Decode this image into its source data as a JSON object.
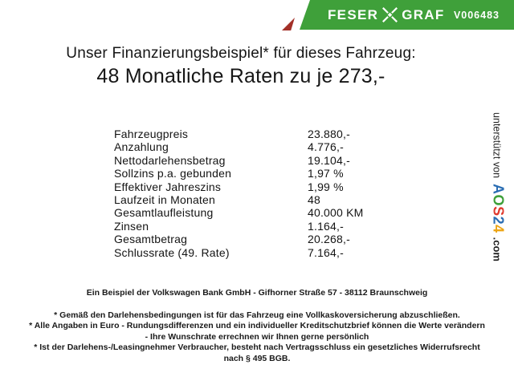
{
  "header": {
    "brand_left": "FESER",
    "brand_right": "GRAF",
    "vehicle_id": "V006483",
    "bar_color": "#3fa03a",
    "accent_color": "#a33028",
    "text_color": "#ffffff"
  },
  "title": {
    "line1": "Unser Finanzierungsbeispiel* für dieses Fahrzeug:",
    "line2": "48 Monatliche Raten zu je 273,-"
  },
  "finance_table": {
    "rows": [
      {
        "label": "Fahrzeugpreis",
        "value": "23.880,-"
      },
      {
        "label": "Anzahlung",
        "value": "4.776,-"
      },
      {
        "label": "Nettodarlehensbetrag",
        "value": "19.104,-"
      },
      {
        "label": "Sollzins p.a. gebunden",
        "value": "1,97 %"
      },
      {
        "label": "Effektiver Jahreszins",
        "value": "1,99 %"
      },
      {
        "label": "Laufzeit in Monaten",
        "value": "48"
      },
      {
        "label": "Gesamtlaufleistung",
        "value": "40.000 KM"
      },
      {
        "label": "Zinsen",
        "value": "1.164,-"
      },
      {
        "label": "Gesamtbetrag",
        "value": "20.268,-"
      },
      {
        "label": "Schlussrate (49. Rate)",
        "value": "7.164,-"
      }
    ]
  },
  "footer": {
    "bank_line": "Ein Beispiel der Volkswagen Bank GmbH - Gifhorner Straße 57 - 38112 Braunschweig",
    "disclaimers": [
      "* Gemäß den Darlehensbedingungen ist für das Fahrzeug eine Vollkaskoversicherung abzuschließen.",
      "* Alle Angaben in Euro - Rundungsdifferenzen und ein individueller Kreditschutzbrief können die Werte verändern",
      "- Ihre Wunschrate errechnen wir Ihnen gerne persönlich",
      "* Ist der Darlehens-/Leasingnehmer Verbraucher, besteht nach Vertragsschluss ein gesetzliches Widerrufsrecht",
      "nach § 495 BGB."
    ]
  },
  "sidebar": {
    "supported_by": "unterstützt von",
    "logo_letters": [
      {
        "ch": "A",
        "color": "#2a6db3"
      },
      {
        "ch": "O",
        "color": "#3fa03a"
      },
      {
        "ch": "S",
        "color": "#e03a2e"
      },
      {
        "ch": "2",
        "color": "#2a6db3"
      },
      {
        "ch": "4",
        "color": "#eda515"
      }
    ],
    "logo_suffix": ".com"
  }
}
